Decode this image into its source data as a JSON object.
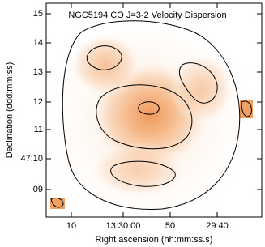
{
  "plot": {
    "title": "NGC5194 CO J=3-2 Velocity Dispersion",
    "x_label": "Right ascension (hh:mm:ss.s)",
    "y_label": "Declination (ddd:mm:ss)",
    "x_ticks": [
      "10",
      "13:30:00",
      "50",
      "29:40"
    ],
    "y_ticks": [
      "15",
      "14",
      "13",
      "12",
      "11",
      "47:10",
      "09"
    ]
  }
}
